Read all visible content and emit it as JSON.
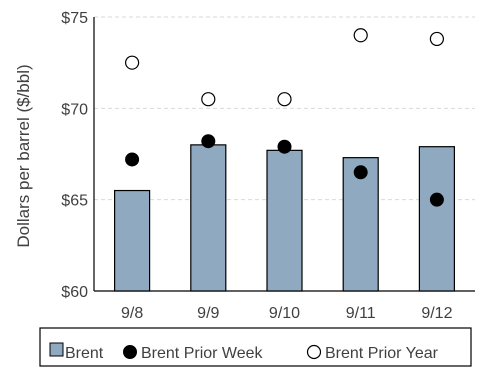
{
  "chart_data": {
    "type": "bar",
    "categories": [
      "9/8",
      "9/9",
      "9/10",
      "9/11",
      "9/12"
    ],
    "ylabel": "Dollars per barrel ($/bbl)",
    "ylim": [
      60,
      75
    ],
    "yticks": [
      60,
      65,
      70,
      75
    ],
    "ytick_labels": [
      "$60",
      "$65",
      "$70",
      "$75"
    ],
    "grid": true,
    "legend_position": "bottom",
    "series": [
      {
        "name": "Brent",
        "kind": "bar",
        "values": [
          65.5,
          68.0,
          67.7,
          67.3,
          67.9
        ],
        "color": "#8faac0"
      },
      {
        "name": "Brent Prior Week",
        "kind": "marker-filled",
        "values": [
          67.2,
          68.2,
          67.9,
          66.5,
          65.0
        ],
        "color": "#000000"
      },
      {
        "name": "Brent Prior Year",
        "kind": "marker-hollow",
        "values": [
          72.5,
          70.5,
          70.5,
          74.0,
          73.8
        ],
        "color": "#ffffff"
      }
    ]
  }
}
